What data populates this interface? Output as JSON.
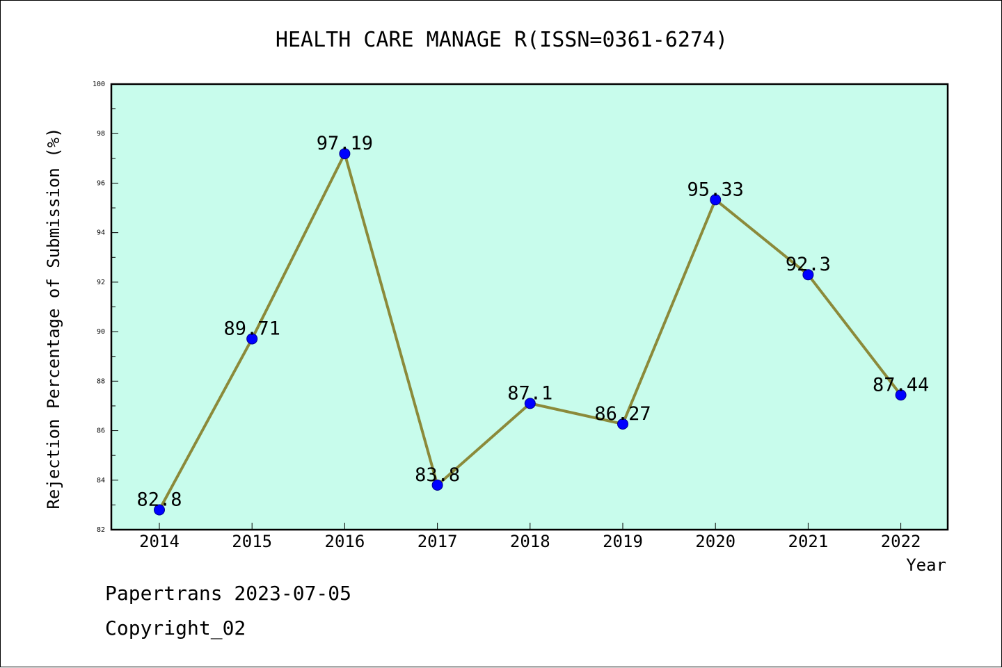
{
  "chart_data": {
    "type": "line",
    "title": "HEALTH CARE MANAGE R(ISSN=0361-6274)",
    "xlabel": "Year",
    "ylabel": "Rejection Percentage of Submission (%)",
    "categories": [
      "2014",
      "2015",
      "2016",
      "2017",
      "2018",
      "2019",
      "2020",
      "2021",
      "2022"
    ],
    "values": [
      82.8,
      89.71,
      97.19,
      83.8,
      87.1,
      86.27,
      95.33,
      92.3,
      87.44
    ],
    "data_labels": [
      "82.8",
      "89.71",
      "97.19",
      "83.8",
      "87.1",
      "86.27",
      "95.33",
      "92.3",
      "87.44"
    ],
    "ylim": [
      82,
      100
    ],
    "yticks": [
      "82",
      "84",
      "86",
      "88",
      "90",
      "92",
      "94",
      "96",
      "98",
      "100"
    ],
    "grid": false,
    "legend": "none",
    "colors": {
      "plot_background": "#c8fcec",
      "line": "#8b8a3a",
      "marker": "#0000ff"
    }
  },
  "footer": {
    "source": "Papertrans 2023-07-05",
    "copyright": "Copyright_02"
  }
}
